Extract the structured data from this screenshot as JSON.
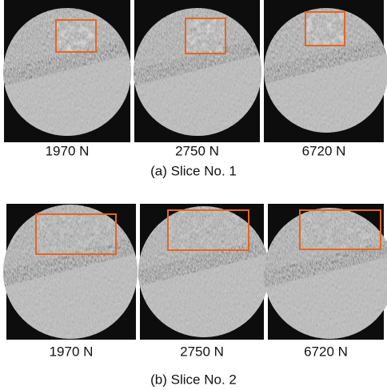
{
  "panels": [
    {
      "caption": "(a) Slice No. 1",
      "images": [
        {
          "label": "1970 N"
        },
        {
          "label": "2750 N"
        },
        {
          "label": "6720 N"
        }
      ]
    },
    {
      "caption": "(b) Slice No. 2",
      "images": [
        {
          "label": "1970 N"
        },
        {
          "label": "2750 N"
        },
        {
          "label": "6720 N"
        }
      ]
    }
  ]
}
